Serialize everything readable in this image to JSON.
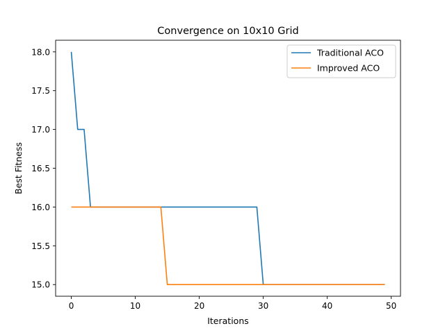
{
  "chart_data": {
    "type": "line",
    "title": "Convergence on 10x10 Grid",
    "xlabel": "Iterations",
    "ylabel": "Best Fitness",
    "xlim": [
      -2.45,
      51.45
    ],
    "ylim": [
      14.85,
      18.15
    ],
    "xticks": [
      0,
      10,
      20,
      30,
      40,
      50
    ],
    "xtick_labels": [
      "0",
      "10",
      "20",
      "30",
      "40",
      "50"
    ],
    "yticks": [
      15.0,
      15.5,
      16.0,
      16.5,
      17.0,
      17.5,
      18.0
    ],
    "ytick_labels": [
      "15.0",
      "15.5",
      "16.0",
      "16.5",
      "17.0",
      "17.5",
      "18.0"
    ],
    "grid": false,
    "legend_position": "upper right",
    "series": [
      {
        "name": "Traditional ACO",
        "color": "#1f77b4",
        "x": [
          0,
          1,
          2,
          3,
          29,
          30,
          49
        ],
        "y": [
          18,
          17,
          17,
          16,
          16,
          15,
          15
        ]
      },
      {
        "name": "Improved ACO",
        "color": "#ff7f0e",
        "x": [
          0,
          14,
          15,
          49
        ],
        "y": [
          16,
          16,
          15,
          15
        ]
      }
    ]
  }
}
